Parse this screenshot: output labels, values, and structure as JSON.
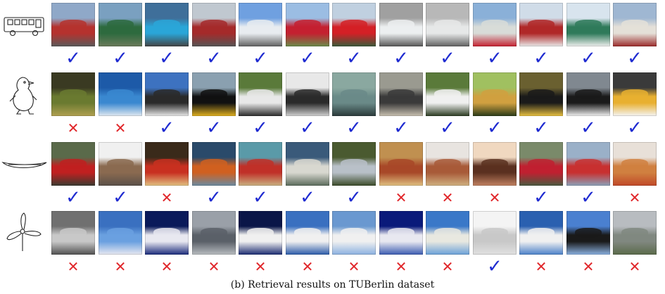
{
  "caption": "(b) Retrieval results on TUBerlin dataset",
  "colors": {
    "check": "#1f2bd1",
    "cross": "#e0262a"
  },
  "glyphs": {
    "check": "✓",
    "cross": "✕"
  },
  "rows": [
    {
      "query": "bus",
      "sketch_icon": "bus-sketch",
      "results": [
        {
          "correct": true,
          "colors": [
            "#8fa8c8",
            "#b5322e",
            "#5a5a5a"
          ]
        },
        {
          "correct": true,
          "colors": [
            "#7aa0c0",
            "#2d6a3e",
            "#6a7a5a"
          ]
        },
        {
          "correct": true,
          "colors": [
            "#3f6f9a",
            "#2aa6d8",
            "#444444"
          ]
        },
        {
          "correct": true,
          "colors": [
            "#c0c8d0",
            "#a52a2a",
            "#555555"
          ]
        },
        {
          "correct": true,
          "colors": [
            "#6fa0e0",
            "#e8ecf0",
            "#606060"
          ]
        },
        {
          "correct": true,
          "colors": [
            "#9bbde3",
            "#c42030",
            "#6a8a4a"
          ]
        },
        {
          "correct": true,
          "colors": [
            "#c0d0e0",
            "#d42026",
            "#3a5a3a"
          ]
        },
        {
          "correct": true,
          "colors": [
            "#a0a0a0",
            "#eceff0",
            "#555555"
          ]
        },
        {
          "correct": true,
          "colors": [
            "#b8b8b8",
            "#e6e8e8",
            "#606060"
          ]
        },
        {
          "correct": true,
          "colors": [
            "#8ab0d8",
            "#d8dcd8",
            "#c42030"
          ]
        },
        {
          "correct": true,
          "colors": [
            "#d0dce8",
            "#b02828",
            "#e8e8e8"
          ]
        },
        {
          "correct": true,
          "colors": [
            "#d8e4ee",
            "#2f7a5a",
            "#eeeeee"
          ]
        },
        {
          "correct": true,
          "colors": [
            "#9fb7d2",
            "#e4e0d8",
            "#9a2a2a"
          ]
        }
      ]
    },
    {
      "query": "penguin",
      "sketch_icon": "penguin-sketch",
      "results": [
        {
          "correct": false,
          "colors": [
            "#3a3a22",
            "#6a7a30",
            "#b0a050"
          ]
        },
        {
          "correct": false,
          "colors": [
            "#1d5aa8",
            "#3a88d0",
            "#e0e8f0"
          ]
        },
        {
          "correct": true,
          "colors": [
            "#3d72c0",
            "#2a2a2a",
            "#e8e8e8"
          ]
        },
        {
          "correct": true,
          "colors": [
            "#8aa0b0",
            "#111111",
            "#e0b020"
          ]
        },
        {
          "correct": true,
          "colors": [
            "#5a7a3a",
            "#e8e8e8",
            "#2a2a2a"
          ]
        },
        {
          "correct": true,
          "colors": [
            "#e8e8e8",
            "#2a2a2a",
            "#d0d0d0"
          ]
        },
        {
          "correct": true,
          "colors": [
            "#8aa8a0",
            "#6a8a88",
            "#2a3a3a"
          ]
        },
        {
          "correct": true,
          "colors": [
            "#9a9a90",
            "#3a3a3a",
            "#c8c0b0"
          ]
        },
        {
          "correct": true,
          "colors": [
            "#5a7a3a",
            "#f0f0f0",
            "#2a3a20"
          ]
        },
        {
          "correct": true,
          "colors": [
            "#a0c060",
            "#d0a040",
            "#2a3a18"
          ]
        },
        {
          "correct": true,
          "colors": [
            "#6a6030",
            "#1a1a1a",
            "#e8c040"
          ]
        },
        {
          "correct": true,
          "colors": [
            "#808890",
            "#1a1a1a",
            "#f0f0f0"
          ]
        },
        {
          "correct": true,
          "colors": [
            "#3a3a3a",
            "#e8b030",
            "#f4f4f4"
          ]
        }
      ]
    },
    {
      "query": "canoe",
      "sketch_icon": "canoe-sketch",
      "results": [
        {
          "correct": true,
          "colors": [
            "#5a6a4a",
            "#c02020",
            "#3a3a30"
          ]
        },
        {
          "correct": true,
          "colors": [
            "#f0f0f0",
            "#8a6a50",
            "#5a5048"
          ]
        },
        {
          "correct": false,
          "colors": [
            "#3a2a1a",
            "#c83020",
            "#e0c080"
          ]
        },
        {
          "correct": true,
          "colors": [
            "#2a4a6a",
            "#d06020",
            "#6a8aa0"
          ]
        },
        {
          "correct": true,
          "colors": [
            "#5a9aa8",
            "#c03028",
            "#c8b080"
          ]
        },
        {
          "correct": true,
          "colors": [
            "#3a5a7a",
            "#d8d8d0",
            "#5a6a5a"
          ]
        },
        {
          "correct": true,
          "colors": [
            "#4a5a30",
            "#b8c0c8",
            "#3a4a28"
          ]
        },
        {
          "correct": false,
          "colors": [
            "#c09050",
            "#a84828",
            "#e0c080"
          ]
        },
        {
          "correct": false,
          "colors": [
            "#e8e4e0",
            "#a85a38",
            "#d0b080"
          ]
        },
        {
          "correct": false,
          "colors": [
            "#f0d8c0",
            "#5a3020",
            "#c08060"
          ]
        },
        {
          "correct": true,
          "colors": [
            "#7a8a6a",
            "#c02030",
            "#4a5a40"
          ]
        },
        {
          "correct": true,
          "colors": [
            "#9ab0c8",
            "#c83030",
            "#8aa0b8"
          ]
        },
        {
          "correct": false,
          "colors": [
            "#e8e0d8",
            "#d08040",
            "#c04828"
          ]
        }
      ]
    },
    {
      "query": "windmill",
      "sketch_icon": "windmill-sketch",
      "results": [
        {
          "correct": false,
          "colors": [
            "#707070",
            "#c8c8c8",
            "#505050"
          ]
        },
        {
          "correct": false,
          "colors": [
            "#3a70c0",
            "#6aa0e0",
            "#e8e8f0"
          ]
        },
        {
          "correct": false,
          "colors": [
            "#0a1a5a",
            "#e8e8f0",
            "#1a2a7a"
          ]
        },
        {
          "correct": false,
          "colors": [
            "#9aa0a8",
            "#5a6068",
            "#b8bcc0"
          ]
        },
        {
          "correct": false,
          "colors": [
            "#0a1648",
            "#f0f0f0",
            "#1a2a70"
          ]
        },
        {
          "correct": false,
          "colors": [
            "#3a70c0",
            "#f0f0f0",
            "#2a5aa8"
          ]
        },
        {
          "correct": false,
          "colors": [
            "#6a98d0",
            "#f0f0f0",
            "#8ab0e0"
          ]
        },
        {
          "correct": false,
          "colors": [
            "#0a1a7a",
            "#e8e8f0",
            "#3a5ab0"
          ]
        },
        {
          "correct": false,
          "colors": [
            "#3a78c8",
            "#e8e8e0",
            "#6aa0d8"
          ]
        },
        {
          "correct": true,
          "colors": [
            "#f4f4f4",
            "#c8c8c8",
            "#e0e0e0"
          ]
        },
        {
          "correct": false,
          "colors": [
            "#2a60b0",
            "#f0f0f0",
            "#4a80c8"
          ]
        },
        {
          "correct": false,
          "colors": [
            "#4a80d0",
            "#1a1a1a",
            "#8ab0e0"
          ]
        },
        {
          "correct": false,
          "colors": [
            "#b8bcc0",
            "#808880",
            "#5a6a4a"
          ]
        }
      ]
    }
  ]
}
